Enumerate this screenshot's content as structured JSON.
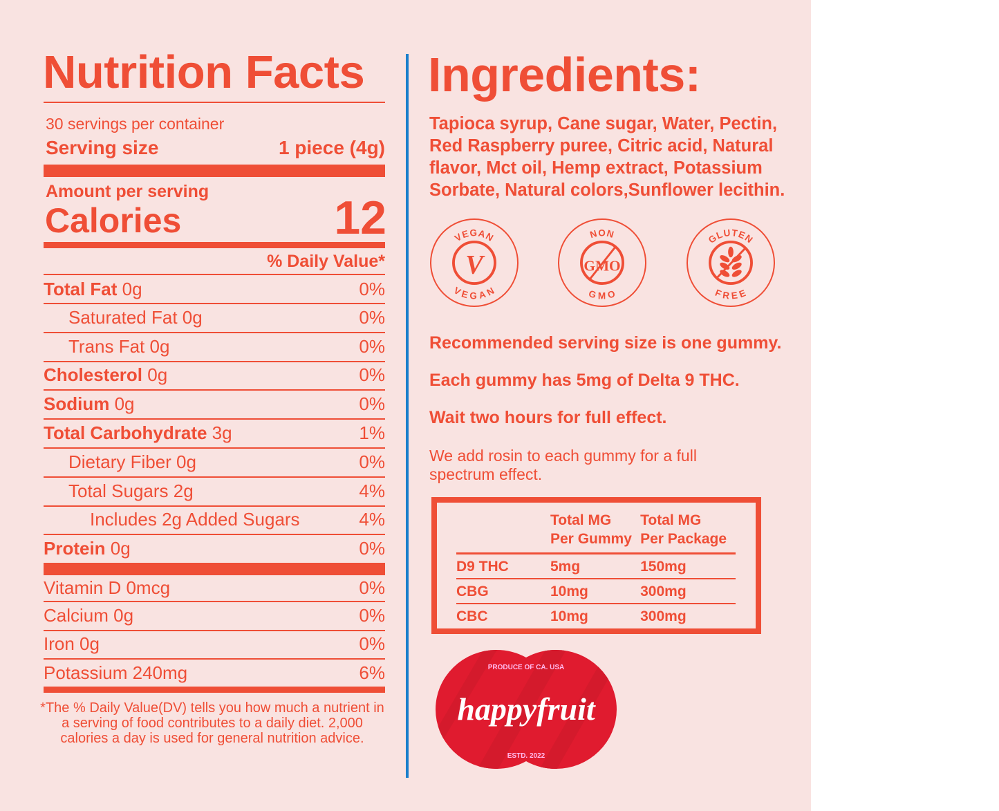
{
  "nutrition": {
    "title": "Nutrition Facts",
    "servings_per_container": "30 servings per container",
    "serving_size_label": "Serving size",
    "serving_size_value": "1 piece (4g)",
    "amount_per_serving": "Amount per serving",
    "calories_label": "Calories",
    "calories_value": "12",
    "daily_value_header": "% Daily Value*",
    "rows": [
      {
        "name": "Total Fat",
        "amount": " 0g",
        "dv": "0%"
      },
      {
        "name": "Saturated Fat 0g",
        "amount": "",
        "dv": "0%"
      },
      {
        "name": "Trans Fat 0g",
        "amount": "",
        "dv": "0%"
      },
      {
        "name": "Cholesterol",
        "amount": " 0g",
        "dv": "0%"
      },
      {
        "name": "Sodium",
        "amount": " 0g",
        "dv": "0%"
      },
      {
        "name": "Total Carbohydrate",
        "amount": " 3g",
        "dv": "1%"
      },
      {
        "name": "Dietary Fiber 0g",
        "amount": "",
        "dv": "0%"
      },
      {
        "name": "Total Sugars  2g",
        "amount": "",
        "dv": "4%"
      },
      {
        "name": "Includes 2g Added Sugars",
        "amount": "",
        "dv": "4%"
      },
      {
        "name": "Protein",
        "amount": " 0g",
        "dv": "0%"
      }
    ],
    "micros": [
      {
        "name": "Vitamin D 0mcg",
        "dv": "0%"
      },
      {
        "name": "Calcium 0g",
        "dv": "0%"
      },
      {
        "name": "Iron 0g",
        "dv": "0%"
      },
      {
        "name": "Potassium 240mg",
        "dv": "6%"
      }
    ],
    "footnote": "*The % Daily Value(DV) tells you how much a nutrient in a serving of food contributes to a daily diet. 2,000 calories a day is used for general nutrition advice."
  },
  "ingredients": {
    "title": "Ingredients:",
    "text": "Tapioca syrup, Cane sugar, Water, Pectin, Red Raspberry puree, Citric acid, Natural flavor, Mct oil, Hemp extract, Potassium Sorbate, Natural colors,Sunflower lecithin."
  },
  "badges": [
    {
      "top": "VEGAN",
      "center": "V",
      "bottom": "VEGAN",
      "icon": "vegan-icon"
    },
    {
      "top": "NON",
      "center": "GMO",
      "bottom": "GMO",
      "icon": "non-gmo-icon"
    },
    {
      "top": "GLUTEN",
      "center": "",
      "bottom": "FREE",
      "icon": "wheat-crossed-icon"
    }
  ],
  "notes": [
    "Recommended serving size is one gummy.",
    "Each gummy has 5mg of Delta 9 THC.",
    "Wait two hours for full effect."
  ],
  "rosin_note": "We add rosin to each gummy for a full spectrum effect.",
  "cannabinoid_table": {
    "headers": [
      "",
      "Total MG\nPer Gummy",
      "Total MG\nPer Package"
    ],
    "rows": [
      [
        "D9 THC",
        "5mg",
        "150mg"
      ],
      [
        "CBG",
        "10mg",
        "300mg"
      ],
      [
        "CBC",
        "10mg",
        "300mg"
      ]
    ]
  },
  "logo": {
    "top": "PRODUCE OF CA. USA",
    "brand": "happyfruit",
    "bottom": "ESTD. 2022"
  },
  "colors": {
    "accent": "#ef4e36",
    "background": "#f9e3e1",
    "divider": "#1a7fcb",
    "logo_red": "#e01b2f"
  }
}
